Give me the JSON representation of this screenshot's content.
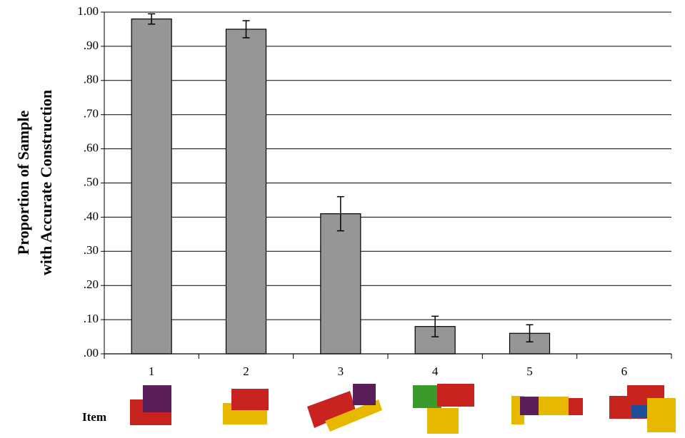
{
  "chart_data": {
    "type": "bar",
    "categories": [
      "1",
      "2",
      "3",
      "4",
      "5",
      "6"
    ],
    "values": [
      0.98,
      0.95,
      0.41,
      0.08,
      0.06,
      0
    ],
    "errors": [
      0.015,
      0.025,
      0.05,
      0.03,
      0.025,
      null
    ],
    "color": "#969696",
    "y_label": [
      "Proportion of Sample",
      "with Accurate Construction"
    ],
    "x_label": "Item",
    "ylim": [
      0,
      1
    ],
    "yticks": [
      {
        "value": 0,
        "label": ".00"
      },
      {
        "value": 0.1,
        "label": ".10"
      },
      {
        "value": 0.2,
        "label": ".20"
      },
      {
        "value": 0.3,
        "label": ".30"
      },
      {
        "value": 0.4,
        "label": ".40"
      },
      {
        "value": 0.5,
        "label": ".50"
      },
      {
        "value": 0.6,
        "label": ".60"
      },
      {
        "value": 0.7,
        "label": ".70"
      },
      {
        "value": 0.8,
        "label": ".80"
      },
      {
        "value": 0.9,
        "label": ".90"
      },
      {
        "value": 1,
        "label": "1.00"
      }
    ],
    "grid": true
  }
}
